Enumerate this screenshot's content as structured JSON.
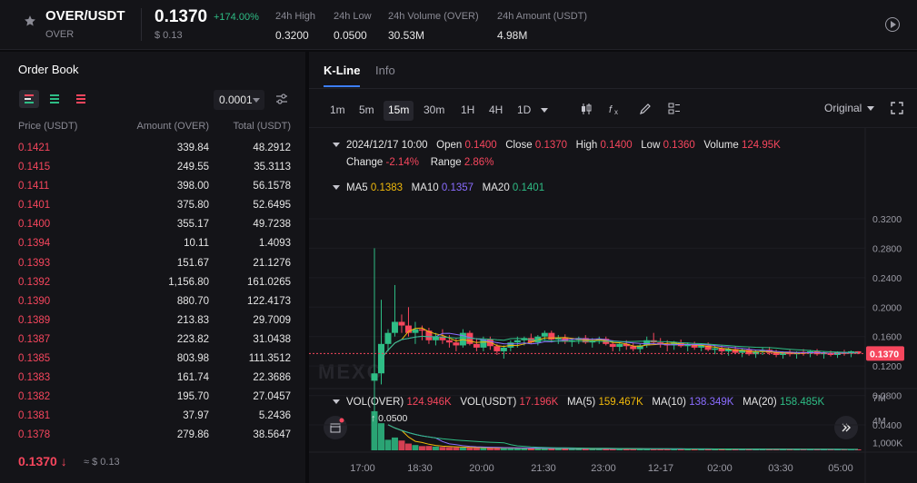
{
  "header": {
    "pair": "OVER/USDT",
    "base": "OVER",
    "price": "0.1370",
    "change": "+174.00%",
    "price_usd": "$ 0.13",
    "stats": [
      {
        "label": "24h High",
        "value": "0.3200"
      },
      {
        "label": "24h Low",
        "value": "0.0500"
      },
      {
        "label": "24h Volume (OVER)",
        "value": "30.53M"
      },
      {
        "label": "24h Amount (USDT)",
        "value": "4.98M"
      }
    ]
  },
  "order_book": {
    "title": "Order Book",
    "precision": "0.0001",
    "columns": [
      "Price (USDT)",
      "Amount (OVER)",
      "Total (USDT)"
    ],
    "asks": [
      {
        "price": "0.1421",
        "amount": "339.84",
        "total": "48.2912"
      },
      {
        "price": "0.1415",
        "amount": "249.55",
        "total": "35.3113"
      },
      {
        "price": "0.1411",
        "amount": "398.00",
        "total": "56.1578"
      },
      {
        "price": "0.1401",
        "amount": "375.80",
        "total": "52.6495"
      },
      {
        "price": "0.1400",
        "amount": "355.17",
        "total": "49.7238"
      },
      {
        "price": "0.1394",
        "amount": "10.11",
        "total": "1.4093"
      },
      {
        "price": "0.1393",
        "amount": "151.67",
        "total": "21.1276"
      },
      {
        "price": "0.1392",
        "amount": "1,156.80",
        "total": "161.0265"
      },
      {
        "price": "0.1390",
        "amount": "880.70",
        "total": "122.4173"
      },
      {
        "price": "0.1389",
        "amount": "213.83",
        "total": "29.7009"
      },
      {
        "price": "0.1387",
        "amount": "223.82",
        "total": "31.0438"
      },
      {
        "price": "0.1385",
        "amount": "803.98",
        "total": "111.3512"
      },
      {
        "price": "0.1383",
        "amount": "161.74",
        "total": "22.3686"
      },
      {
        "price": "0.1382",
        "amount": "195.70",
        "total": "27.0457"
      },
      {
        "price": "0.1381",
        "amount": "37.97",
        "total": "5.2436"
      },
      {
        "price": "0.1378",
        "amount": "279.86",
        "total": "38.5647"
      }
    ],
    "last_price": "0.1370 ↓",
    "last_price_usd": "≈ $ 0.13"
  },
  "chart_panel": {
    "tabs": [
      "K-Line",
      "Info"
    ],
    "timeframes": [
      "1m",
      "5m",
      "15m",
      "30m",
      "1H",
      "4H",
      "1D"
    ],
    "selected_timeframe": "15m",
    "mode": "Original",
    "tools": [
      "candle-type-icon",
      "indicator-fx-icon",
      "draw-pen-icon",
      "layout-grid-icon"
    ],
    "ohlc": {
      "date": "2024/12/17 10:00",
      "open_label": "Open",
      "open": "0.1400",
      "close_label": "Close",
      "close": "0.1370",
      "high_label": "High",
      "high": "0.1400",
      "low_label": "Low",
      "low": "0.1360",
      "volume_label": "Volume",
      "volume": "124.95K",
      "change_label": "Change",
      "change": "-2.14%",
      "range_label": "Range",
      "range": "2.86%"
    },
    "ma": {
      "ma5_label": "MA5",
      "ma5": "0.1383",
      "ma10_label": "MA10",
      "ma10": "0.1357",
      "ma20_label": "MA20",
      "ma20": "0.1401"
    },
    "vol": {
      "over_label": "VOL(OVER)",
      "over": "124.946K",
      "usdt_label": "VOL(USDT)",
      "usdt": "17.196K",
      "ma5_label": "MA(5)",
      "ma5": "159.467K",
      "ma10_label": "MA(10)",
      "ma10": "138.349K",
      "ma20_label": "MA(20)",
      "ma20": "158.485K"
    },
    "watermark": "MEXC",
    "colors": {
      "up": "#2ebd85",
      "down": "#f6465d",
      "ma5": "#f0b90b",
      "ma10": "#8a6cff",
      "ma20": "#2ebd85"
    }
  },
  "chart_data": {
    "type": "candlestick",
    "price_ticks": [
      "0.3200",
      "0.2800",
      "0.2400",
      "0.2000",
      "0.1600",
      "0.1200",
      "0.0800",
      "0.0400"
    ],
    "price_tick_values": [
      0.32,
      0.28,
      0.24,
      0.2,
      0.16,
      0.12,
      0.08,
      0.04
    ],
    "volume_ticks": [
      "7M",
      "4M",
      "1,000K"
    ],
    "volume_tick_values": [
      7000000,
      4000000,
      1000000
    ],
    "x_ticks": [
      "17:00",
      "18:30",
      "20:00",
      "21:30",
      "23:00",
      "12-17",
      "02:00",
      "03:30",
      "05:00"
    ],
    "current_price": 0.137,
    "current_price_label": "0.1370",
    "low_marker": 0.05,
    "low_marker_label": "0.0500",
    "candles": [
      [
        0.1,
        0.28,
        0.05,
        0.11,
        5200000
      ],
      [
        0.11,
        0.21,
        0.095,
        0.15,
        3600000
      ],
      [
        0.15,
        0.17,
        0.14,
        0.165,
        1400000
      ],
      [
        0.165,
        0.23,
        0.16,
        0.18,
        1700000
      ],
      [
        0.18,
        0.19,
        0.165,
        0.175,
        1300000
      ],
      [
        0.175,
        0.2,
        0.16,
        0.165,
        900000
      ],
      [
        0.165,
        0.18,
        0.15,
        0.17,
        700000
      ],
      [
        0.17,
        0.175,
        0.155,
        0.168,
        560000
      ],
      [
        0.168,
        0.172,
        0.15,
        0.155,
        580000
      ],
      [
        0.155,
        0.165,
        0.148,
        0.16,
        500000
      ],
      [
        0.16,
        0.17,
        0.15,
        0.155,
        450000
      ],
      [
        0.155,
        0.162,
        0.145,
        0.152,
        420000
      ],
      [
        0.152,
        0.158,
        0.14,
        0.148,
        400000
      ],
      [
        0.148,
        0.17,
        0.145,
        0.165,
        380000
      ],
      [
        0.165,
        0.168,
        0.148,
        0.15,
        360000
      ],
      [
        0.15,
        0.158,
        0.14,
        0.145,
        340000
      ],
      [
        0.145,
        0.16,
        0.14,
        0.156,
        330000
      ],
      [
        0.156,
        0.16,
        0.142,
        0.147,
        320000
      ],
      [
        0.147,
        0.15,
        0.135,
        0.14,
        310000
      ],
      [
        0.14,
        0.148,
        0.13,
        0.145,
        300000
      ],
      [
        0.145,
        0.155,
        0.14,
        0.152,
        290000
      ],
      [
        0.152,
        0.16,
        0.145,
        0.155,
        280000
      ],
      [
        0.155,
        0.16,
        0.148,
        0.158,
        270000
      ],
      [
        0.158,
        0.164,
        0.15,
        0.152,
        260000
      ],
      [
        0.152,
        0.162,
        0.148,
        0.16,
        260000
      ],
      [
        0.16,
        0.168,
        0.154,
        0.165,
        250000
      ],
      [
        0.165,
        0.168,
        0.152,
        0.156,
        240000
      ],
      [
        0.156,
        0.162,
        0.15,
        0.159,
        240000
      ],
      [
        0.159,
        0.163,
        0.15,
        0.153,
        230000
      ],
      [
        0.153,
        0.158,
        0.146,
        0.155,
        230000
      ],
      [
        0.155,
        0.16,
        0.15,
        0.158,
        220000
      ],
      [
        0.158,
        0.162,
        0.15,
        0.152,
        220000
      ],
      [
        0.152,
        0.158,
        0.145,
        0.155,
        210000
      ],
      [
        0.155,
        0.16,
        0.15,
        0.157,
        210000
      ],
      [
        0.157,
        0.16,
        0.148,
        0.15,
        200000
      ],
      [
        0.15,
        0.155,
        0.14,
        0.146,
        200000
      ],
      [
        0.146,
        0.152,
        0.14,
        0.15,
        195000
      ],
      [
        0.15,
        0.155,
        0.142,
        0.147,
        190000
      ],
      [
        0.147,
        0.152,
        0.14,
        0.143,
        190000
      ],
      [
        0.143,
        0.15,
        0.138,
        0.148,
        185000
      ],
      [
        0.148,
        0.16,
        0.145,
        0.155,
        185000
      ],
      [
        0.155,
        0.165,
        0.15,
        0.152,
        180000
      ],
      [
        0.152,
        0.158,
        0.145,
        0.15,
        180000
      ],
      [
        0.15,
        0.155,
        0.14,
        0.148,
        175000
      ],
      [
        0.148,
        0.154,
        0.142,
        0.152,
        175000
      ],
      [
        0.152,
        0.156,
        0.145,
        0.147,
        170000
      ],
      [
        0.147,
        0.152,
        0.14,
        0.15,
        170000
      ],
      [
        0.15,
        0.153,
        0.142,
        0.145,
        165000
      ],
      [
        0.145,
        0.15,
        0.14,
        0.148,
        165000
      ],
      [
        0.148,
        0.152,
        0.14,
        0.142,
        160000
      ],
      [
        0.142,
        0.148,
        0.136,
        0.144,
        160000
      ],
      [
        0.144,
        0.148,
        0.135,
        0.14,
        155000
      ],
      [
        0.14,
        0.145,
        0.134,
        0.143,
        155000
      ],
      [
        0.143,
        0.147,
        0.136,
        0.138,
        150000
      ],
      [
        0.138,
        0.144,
        0.132,
        0.142,
        150000
      ],
      [
        0.142,
        0.145,
        0.134,
        0.136,
        145000
      ],
      [
        0.136,
        0.142,
        0.131,
        0.14,
        145000
      ],
      [
        0.14,
        0.145,
        0.135,
        0.142,
        140000
      ],
      [
        0.142,
        0.146,
        0.135,
        0.138,
        140000
      ],
      [
        0.138,
        0.142,
        0.132,
        0.135,
        135000
      ],
      [
        0.135,
        0.14,
        0.13,
        0.138,
        135000
      ],
      [
        0.138,
        0.142,
        0.133,
        0.136,
        130000
      ],
      [
        0.136,
        0.14,
        0.13,
        0.139,
        130000
      ],
      [
        0.139,
        0.143,
        0.134,
        0.137,
        128000
      ],
      [
        0.137,
        0.142,
        0.132,
        0.14,
        128000
      ],
      [
        0.14,
        0.143,
        0.134,
        0.136,
        126000
      ],
      [
        0.136,
        0.14,
        0.13,
        0.138,
        126000
      ],
      [
        0.138,
        0.141,
        0.133,
        0.135,
        125000
      ],
      [
        0.135,
        0.14,
        0.131,
        0.139,
        125000
      ],
      [
        0.139,
        0.142,
        0.134,
        0.137,
        125000
      ],
      [
        0.137,
        0.141,
        0.132,
        0.14,
        124000
      ],
      [
        0.14,
        0.14,
        0.136,
        0.137,
        124946
      ]
    ]
  }
}
